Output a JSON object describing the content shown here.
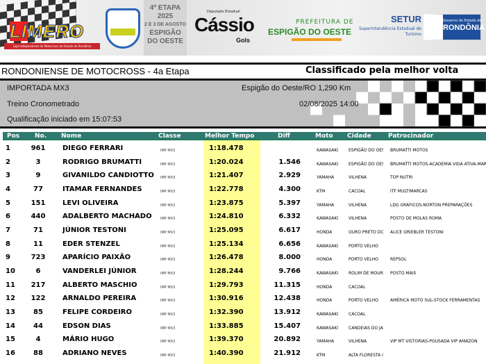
{
  "banner": {
    "limero_logo": "LIMERO",
    "liga": "Liga Independente de Motocross do Estado de Rondônia",
    "etapa": [
      "4ª ETAPA",
      "2025",
      "2 E 3 DE AGOSTO",
      "ESPIGÃO",
      "DO OESTE"
    ],
    "deputado": "Deputado Estadual",
    "cassio": "Cássio",
    "gols": "Gols",
    "prefeitura": "PREFEITURA DE",
    "espigao": "ESPIGÃO DO OESTE",
    "setur": "SETUR",
    "setur_sub": "Superintendência Estadual de Turismo",
    "gov": "Governo do Estado de",
    "rondonia": "RONDÔNIA"
  },
  "header": {
    "title": "RONDONIENSE DE MOTOCROSS - 4a Etapa",
    "subtitle": "Classificado pela melhor volta"
  },
  "info": {
    "category": "IMPORTADA MX3",
    "session": "Treino Cronometrado",
    "qualification": "Qualificação iniciado em 15:07:53",
    "location": "Espigão do Oeste/RO 1,290 Km",
    "datetime": "02/08/2025 14:00"
  },
  "columns": [
    "Pos",
    "No.",
    "Nome",
    "Classe",
    "Melhor Tempo",
    "Diff",
    "Moto",
    "Cidade",
    "Patrocinador"
  ],
  "colors": {
    "header_bg": "#2f7a70",
    "best_time_bg": "#fefe94",
    "info_bg": "#c0c0c0"
  },
  "rows": [
    [
      "1",
      "961",
      "DIEGO FERRARI",
      "IMP MX3",
      "1:18.478",
      "",
      "KAWASAKI",
      "ESPIGÃO DO OES",
      "BRUMATTI MOTOS"
    ],
    [
      "2",
      "3",
      "RODRIGO BRUMATTI",
      "IMP MX3",
      "1:20.024",
      "1.546",
      "KAWASAKI",
      "ESPIGÃO DO OES",
      "BRUMATTI MOTOS-ACADEMIA VIDA ATIVA-MARI"
    ],
    [
      "3",
      "9",
      "GIVANILDO CANDIOTTO",
      "IMP MX3",
      "1:21.407",
      "2.929",
      "YAMAHA",
      "VILHENA",
      "TOP NUTRI"
    ],
    [
      "4",
      "77",
      "ITAMAR FERNANDES",
      "IMP MX3",
      "1:22.778",
      "4.300",
      "KTM",
      "CACOAL",
      "ITF MULTIMARCAS"
    ],
    [
      "5",
      "151",
      "LEVI OLIVEIRA",
      "IMP MX3",
      "1:23.875",
      "5.397",
      "YAMAHA",
      "VILHENA",
      "LDG GRÁFICOS-NORTON PREPARAÇÕES"
    ],
    [
      "6",
      "440",
      "ADALBERTO MACHADO",
      "IMP MX3",
      "1:24.810",
      "6.332",
      "KAWASAKI",
      "VILHENA",
      "POSTO DE MOLAS ROMA"
    ],
    [
      "7",
      "71",
      "JÚNIOR TESTONI",
      "IMP MX3",
      "1:25.095",
      "6.617",
      "HONDA",
      "OURO PRETO DO",
      "ALICE GRIEBLER TESTONI"
    ],
    [
      "8",
      "11",
      "EDER STENZEL",
      "IMP MX3",
      "1:25.134",
      "6.656",
      "KAWASAKI",
      "PORTO VELHO",
      ""
    ],
    [
      "9",
      "723",
      "APARÍCIO PAIXÃO",
      "IMP MX3",
      "1:26.478",
      "8.000",
      "HONDA",
      "PORTO VELHO",
      "REPSOL"
    ],
    [
      "10",
      "6",
      "VANDERLEI JÚNIOR",
      "IMP MX3",
      "1:28.244",
      "9.766",
      "KAWASAKI",
      "ROLIM DE MOUR",
      "POSTO MAIS"
    ],
    [
      "11",
      "217",
      "ALBERTO MASCHIO",
      "IMP MX3",
      "1:29.793",
      "11.315",
      "HONDA",
      "CACOAL",
      ""
    ],
    [
      "12",
      "122",
      "ARNALDO PEREIRA",
      "IMP MX3",
      "1:30.916",
      "12.438",
      "HONDA",
      "PORTO VELHO",
      "AMÉRICA MOTO SUL-STOCK FERRAMENTAS"
    ],
    [
      "13",
      "85",
      "FELIPE CORDEIRO",
      "IMP MX3",
      "1:32.390",
      "13.912",
      "KAWASAKI",
      "CACOAL",
      ""
    ],
    [
      "14",
      "44",
      "EDSON DIAS",
      "IMP MX3",
      "1:33.885",
      "15.407",
      "KAWASAKI",
      "CANDEIAS DO JA",
      ""
    ],
    [
      "15",
      "4",
      "MÁRIO HUGO",
      "IMP MX3",
      "1:39.370",
      "20.892",
      "YAMAHA",
      "VILHENA",
      "VIP MT VISTORIAS-POUSADA VIP AMAZON"
    ],
    [
      "16",
      "88",
      "ADRIANO NEVES",
      "IMP MX3",
      "1:40.390",
      "21.912",
      "KTM",
      "ALTA FLORESTA I",
      ""
    ]
  ]
}
